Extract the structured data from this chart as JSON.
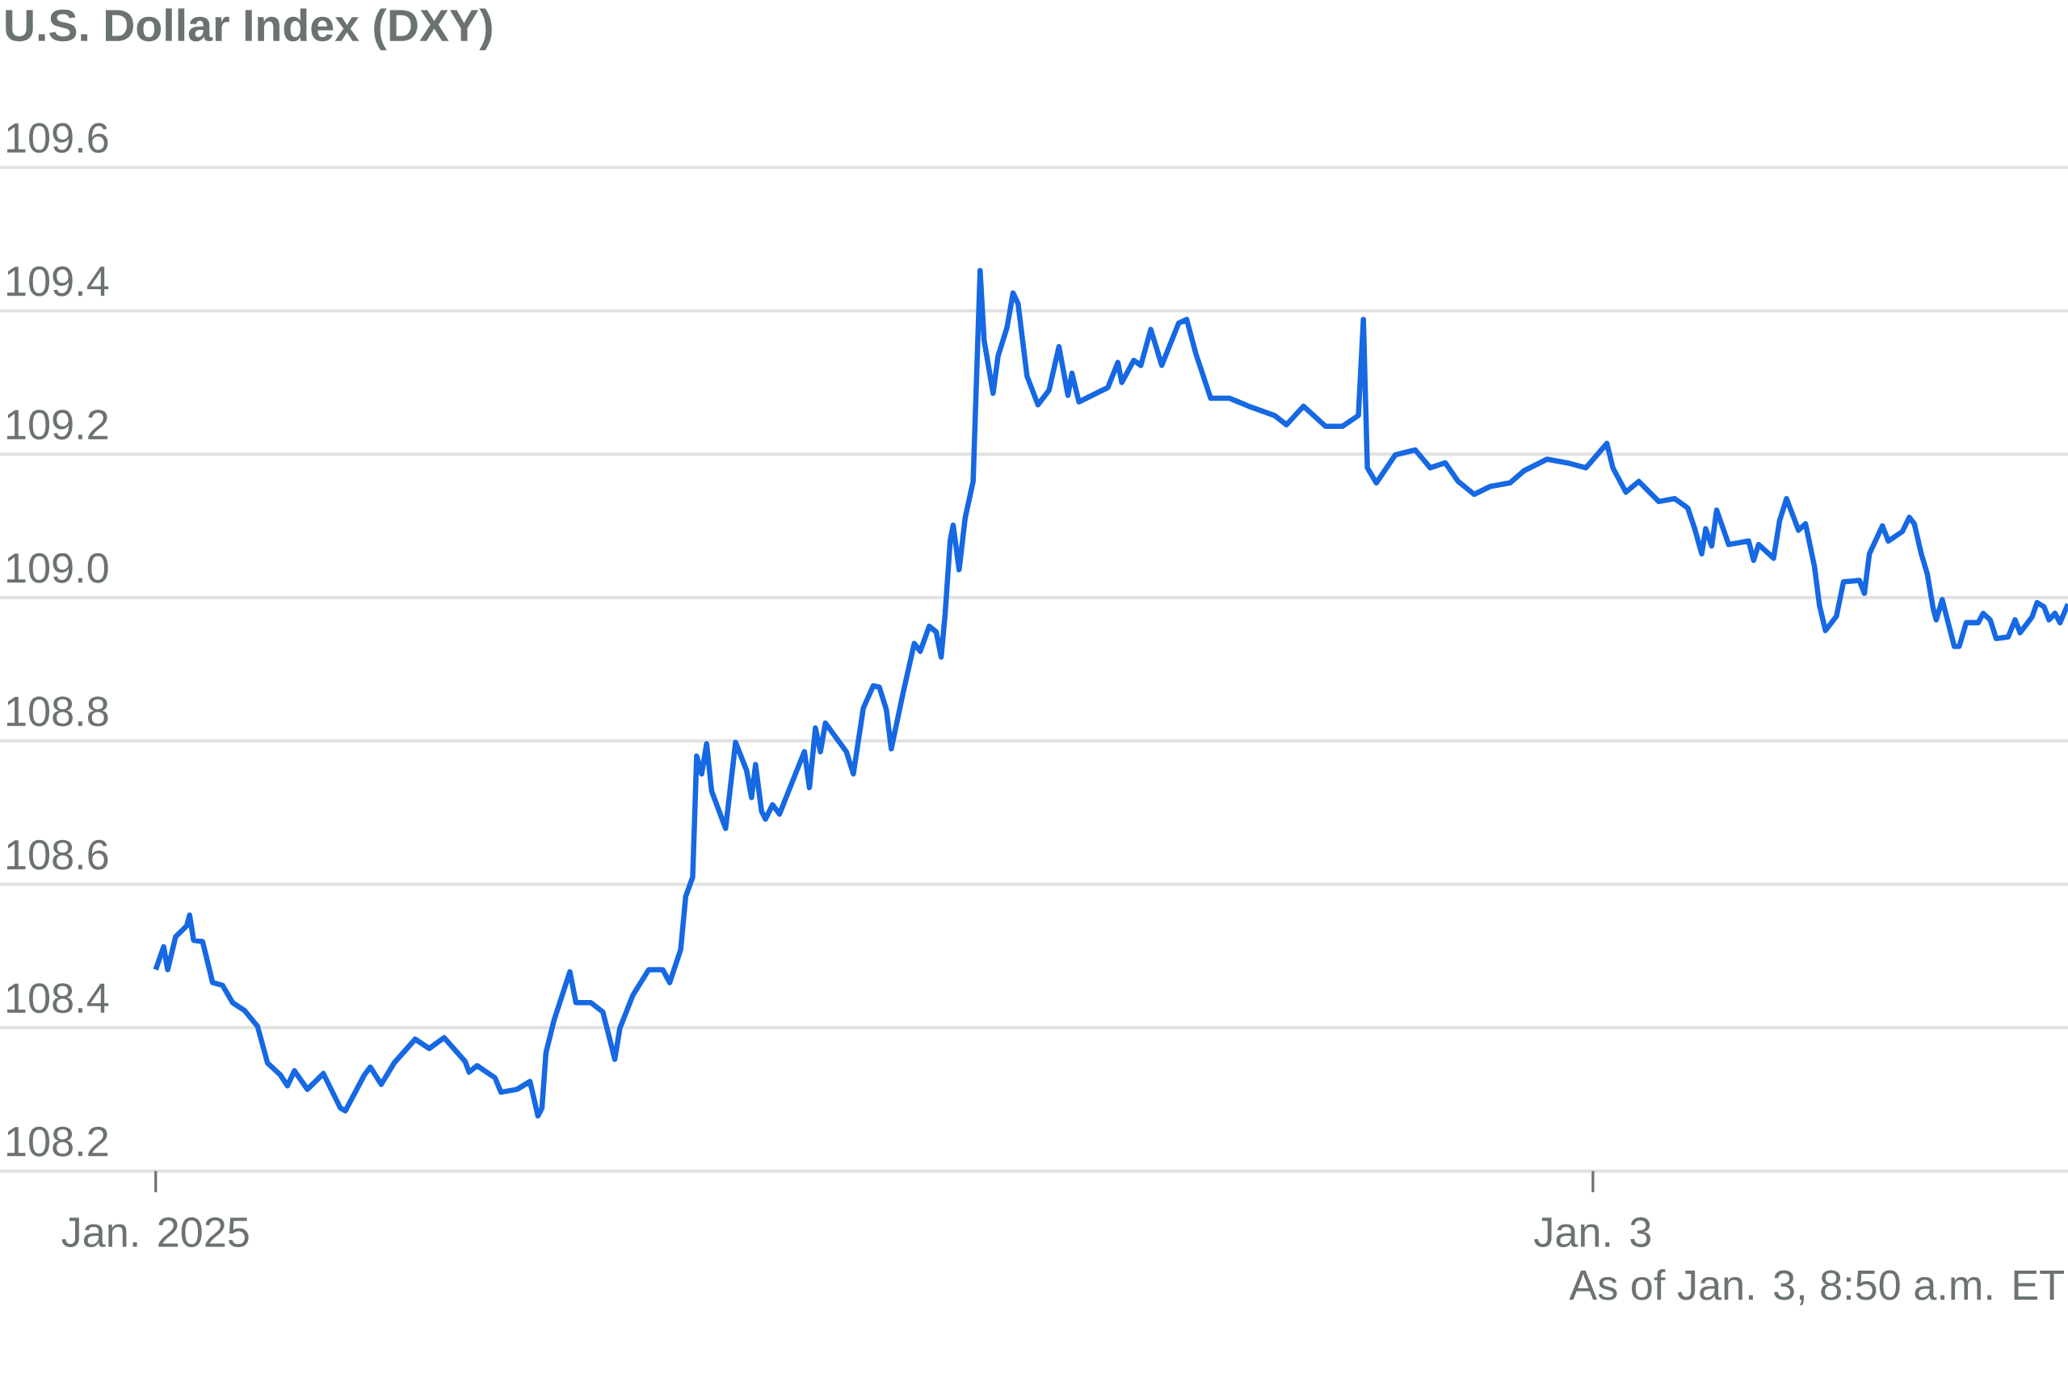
{
  "chart_data": {
    "type": "line",
    "title": "U.S. Dollar Index (DXY)",
    "annotations": [
      "As of Jan. 3, 8:50 a.m. ET"
    ],
    "xlim": [
      "2025-01-01T21:24",
      "2025-01-03T07:56"
    ],
    "ylim": [
      108.2,
      109.6
    ],
    "xticks": [
      {
        "value": "2025-01-02",
        "label": "Jan. 2025"
      },
      {
        "value": "2025-01-03",
        "label": "Jan. 3"
      }
    ],
    "yticks": [
      108.2,
      108.4,
      108.6,
      108.8,
      {
        "value": 109.0,
        "label": "109.0"
      },
      109.2,
      109.4,
      109.6
    ],
    "grid": "y",
    "series": [
      {
        "color": "#1668e3",
        "x": [
          "2025-01-02T00:00",
          "2025-01-02T00:08",
          "2025-01-02T00:12",
          "2025-01-02T00:20",
          "2025-01-02T00:31",
          "2025-01-02T00:34",
          "2025-01-02T00:38",
          "2025-01-02T00:47",
          "2025-01-02T00:57",
          "2025-01-02T01:07",
          "2025-01-02T01:17",
          "2025-01-02T01:29",
          "2025-01-02T01:42",
          "2025-01-02T01:52",
          "2025-01-02T02:05",
          "2025-01-02T02:12",
          "2025-01-02T02:19",
          "2025-01-02T02:32",
          "2025-01-02T02:48",
          "2025-01-02T03:05",
          "2025-01-02T03:10",
          "2025-01-02T03:29",
          "2025-01-02T03:35",
          "2025-01-02T03:46",
          "2025-01-02T03:59",
          "2025-01-02T04:20",
          "2025-01-02T04:34",
          "2025-01-02T04:49",
          "2025-01-02T05:10",
          "2025-01-02T05:14",
          "2025-01-02T05:22",
          "2025-01-02T05:40",
          "2025-01-02T05:46",
          "2025-01-02T06:02",
          "2025-01-02T06:15",
          "2025-01-02T06:23",
          "2025-01-02T06:27",
          "2025-01-02T06:31",
          "2025-01-02T06:39",
          "2025-01-02T06:50",
          "2025-01-02T06:55",
          "2025-01-02T07:01",
          "2025-01-02T07:16",
          "2025-01-02T07:28",
          "2025-01-02T07:40",
          "2025-01-02T07:45",
          "2025-01-02T07:58",
          "2025-01-02T08:14",
          "2025-01-02T08:28",
          "2025-01-02T08:35",
          "2025-01-02T08:46",
          "2025-01-02T08:51",
          "2025-01-02T08:58",
          "2025-01-02T09:02",
          "2025-01-02T09:07",
          "2025-01-02T09:12",
          "2025-01-02T09:17",
          "2025-01-02T09:31",
          "2025-01-02T09:41",
          "2025-01-02T09:52",
          "2025-01-02T09:57",
          "2025-01-02T10:01",
          "2025-01-02T10:07",
          "2025-01-02T10:11",
          "2025-01-02T10:18",
          "2025-01-02T10:25",
          "2025-01-02T10:43",
          "2025-01-02T10:50",
          "2025-01-02T10:55",
          "2025-01-02T11:01",
          "2025-01-02T11:06",
          "2025-01-02T11:11",
          "2025-01-02T11:32",
          "2025-01-02T11:39",
          "2025-01-02T11:49",
          "2025-01-02T11:59",
          "2025-01-02T12:05",
          "2025-01-02T12:12",
          "2025-01-02T12:17",
          "2025-01-02T12:29",
          "2025-01-02T12:40",
          "2025-01-02T12:46",
          "2025-01-02T12:55",
          "2025-01-02T13:02",
          "2025-01-02T13:07",
          "2025-01-02T13:11",
          "2025-01-02T13:16",
          "2025-01-02T13:19",
          "2025-01-02T13:25",
          "2025-01-02T13:31",
          "2025-01-02T13:39",
          "2025-01-02T13:46",
          "2025-01-02T13:50",
          "2025-01-02T13:59",
          "2025-01-02T14:04",
          "2025-01-02T14:13",
          "2025-01-02T14:19",
          "2025-01-02T14:24",
          "2025-01-02T14:33",
          "2025-01-02T14:44",
          "2025-01-02T14:55",
          "2025-01-02T15:05",
          "2025-01-02T15:14",
          "2025-01-02T15:18",
          "2025-01-02T15:25",
          "2025-01-02T15:54",
          "2025-01-02T16:04",
          "2025-01-02T16:08",
          "2025-01-02T16:20",
          "2025-01-02T16:27",
          "2025-01-02T16:37",
          "2025-01-02T16:48",
          "2025-01-02T17:05",
          "2025-01-02T17:13",
          "2025-01-02T17:22",
          "2025-01-02T17:37",
          "2025-01-02T17:56",
          "2025-01-02T18:15",
          "2025-01-02T18:41",
          "2025-01-02T18:53",
          "2025-01-02T19:10",
          "2025-01-02T19:32",
          "2025-01-02T19:49",
          "2025-01-02T20:05",
          "2025-01-02T20:10",
          "2025-01-02T20:14",
          "2025-01-02T20:23",
          "2025-01-02T20:42",
          "2025-01-02T21:02",
          "2025-01-02T21:17",
          "2025-01-02T21:32",
          "2025-01-02T21:45",
          "2025-01-02T22:01",
          "2025-01-02T22:17",
          "2025-01-02T22:37",
          "2025-01-02T22:51",
          "2025-01-02T23:14",
          "2025-01-02T23:34",
          "2025-01-02T23:53",
          "2025-01-03T00:14",
          "2025-01-03T00:20",
          "2025-01-03T00:33",
          "2025-01-03T00:46",
          "2025-01-03T01:06",
          "2025-01-03T01:22",
          "2025-01-03T01:35",
          "2025-01-03T01:42",
          "2025-01-03T01:49",
          "2025-01-03T01:53",
          "2025-01-03T01:59",
          "2025-01-03T02:04",
          "2025-01-03T02:16",
          "2025-01-03T02:36",
          "2025-01-03T02:41",
          "2025-01-03T02:46",
          "2025-01-03T03:01",
          "2025-01-03T03:07",
          "2025-01-03T03:14",
          "2025-01-03T03:26",
          "2025-01-03T03:33",
          "2025-01-03T03:42",
          "2025-01-03T03:47",
          "2025-01-03T03:53",
          "2025-01-03T04:04",
          "2025-01-03T04:11",
          "2025-01-03T04:27",
          "2025-01-03T04:32",
          "2025-01-03T04:37",
          "2025-01-03T04:50",
          "2025-01-03T04:56",
          "2025-01-03T05:10",
          "2025-01-03T05:17",
          "2025-01-03T05:22",
          "2025-01-03T05:29",
          "2025-01-03T05:35",
          "2025-01-03T05:41",
          "2025-01-03T05:44",
          "2025-01-03T05:50",
          "2025-01-03T06:02",
          "2025-01-03T06:07",
          "2025-01-03T06:14",
          "2025-01-03T06:26",
          "2025-01-03T06:31",
          "2025-01-03T06:38",
          "2025-01-03T06:44",
          "2025-01-03T06:56",
          "2025-01-03T07:03",
          "2025-01-03T07:08",
          "2025-01-03T07:20",
          "2025-01-03T07:25",
          "2025-01-03T07:32",
          "2025-01-03T07:37",
          "2025-01-03T07:43",
          "2025-01-03T07:48",
          "2025-01-03T07:56"
        ],
        "values": [
          108.481,
          108.513,
          108.481,
          108.527,
          108.542,
          108.557,
          108.522,
          108.52,
          108.463,
          108.459,
          108.435,
          108.424,
          108.402,
          108.351,
          108.334,
          108.319,
          108.34,
          108.314,
          108.336,
          108.288,
          108.284,
          108.334,
          108.345,
          108.321,
          108.351,
          108.384,
          108.371,
          108.386,
          108.353,
          108.338,
          108.347,
          108.33,
          108.31,
          108.314,
          108.325,
          108.277,
          108.288,
          108.365,
          108.41,
          108.457,
          108.478,
          108.435,
          108.435,
          108.422,
          108.356,
          108.399,
          108.445,
          108.481,
          108.481,
          108.463,
          108.509,
          108.583,
          108.61,
          108.779,
          108.754,
          108.796,
          108.73,
          108.678,
          108.798,
          108.759,
          108.721,
          108.767,
          108.702,
          108.691,
          108.711,
          108.698,
          108.761,
          108.785,
          108.735,
          108.818,
          108.785,
          108.825,
          108.785,
          108.754,
          108.846,
          108.877,
          108.875,
          108.844,
          108.789,
          108.868,
          108.936,
          108.925,
          108.96,
          108.952,
          108.917,
          108.978,
          109.079,
          109.101,
          109.039,
          109.111,
          109.162,
          109.456,
          109.359,
          109.285,
          109.337,
          109.377,
          109.425,
          109.41,
          109.309,
          109.269,
          109.289,
          109.35,
          109.282,
          109.313,
          109.273,
          109.293,
          109.328,
          109.3,
          109.331,
          109.324,
          109.374,
          109.324,
          109.383,
          109.388,
          109.341,
          109.278,
          109.278,
          109.267,
          109.254,
          109.241,
          109.267,
          109.239,
          109.239,
          109.254,
          109.388,
          109.181,
          109.16,
          109.199,
          109.206,
          109.181,
          109.188,
          109.162,
          109.144,
          109.155,
          109.16,
          109.177,
          109.193,
          109.188,
          109.181,
          109.215,
          109.181,
          109.147,
          109.162,
          109.134,
          109.138,
          109.125,
          109.096,
          109.061,
          109.096,
          109.072,
          109.122,
          109.074,
          109.079,
          109.052,
          109.074,
          109.055,
          109.107,
          109.138,
          109.094,
          109.103,
          109.043,
          108.989,
          108.954,
          108.974,
          109.022,
          109.024,
          109.006,
          109.061,
          109.1,
          109.079,
          109.092,
          109.112,
          109.103,
          109.061,
          109.033,
          108.984,
          108.969,
          108.997,
          108.932,
          108.932,
          108.965,
          108.965,
          108.978,
          108.969,
          108.943,
          108.945,
          108.969,
          108.951,
          108.973,
          108.993,
          108.987,
          108.969,
          108.978,
          108.965,
          108.991
        ]
      }
    ]
  }
}
